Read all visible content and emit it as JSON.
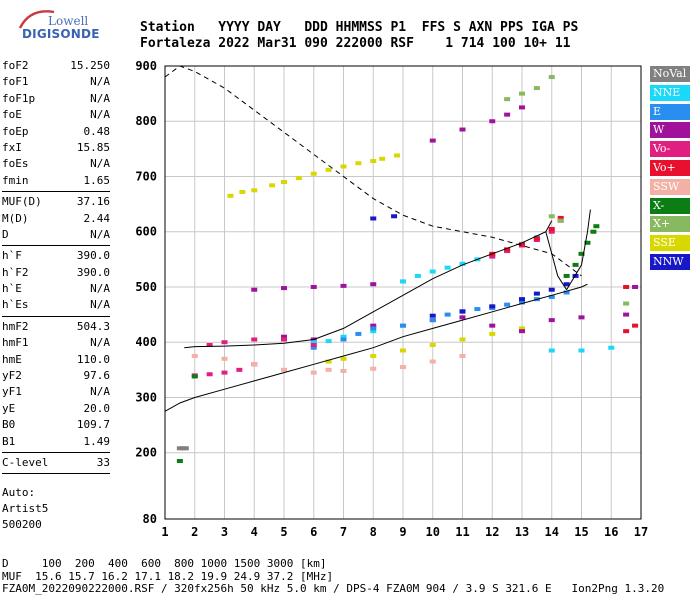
{
  "logo": {
    "line1": "Lowell",
    "line2": "DIGISONDE"
  },
  "header": {
    "line1": "Station   YYYY DAY   DDD HHMMSS P1  FFS S AXN PPS IGA PS",
    "line2": "Fortaleza 2022 Mar31 090 222000 RSF    1 714 100 10+ 11"
  },
  "params": [
    {
      "group": [
        {
          "k": "foF2",
          "v": "15.250"
        },
        {
          "k": "foF1",
          "v": "N/A"
        },
        {
          "k": "foF1p",
          "v": "N/A"
        },
        {
          "k": "foE",
          "v": "N/A"
        },
        {
          "k": "foEp",
          "v": "0.48"
        },
        {
          "k": "fxI",
          "v": "15.85"
        },
        {
          "k": "foEs",
          "v": "N/A"
        },
        {
          "k": "fmin",
          "v": "1.65"
        }
      ]
    },
    {
      "group": [
        {
          "k": "MUF(D)",
          "v": "37.16"
        },
        {
          "k": "M(D)",
          "v": "2.44"
        },
        {
          "k": "D",
          "v": "N/A"
        }
      ]
    },
    {
      "group": [
        {
          "k": "h`F",
          "v": "390.0"
        },
        {
          "k": "h`F2",
          "v": "390.0"
        },
        {
          "k": "h`E",
          "v": "N/A"
        },
        {
          "k": "h`Es",
          "v": "N/A"
        }
      ]
    },
    {
      "group": [
        {
          "k": "hmF2",
          "v": "504.3"
        },
        {
          "k": "hmF1",
          "v": "N/A"
        },
        {
          "k": "hmE",
          "v": "110.0"
        },
        {
          "k": "yF2",
          "v": "97.6"
        },
        {
          "k": "yF1",
          "v": "N/A"
        },
        {
          "k": "yE",
          "v": "20.0"
        },
        {
          "k": "B0",
          "v": "109.7"
        },
        {
          "k": "B1",
          "v": "1.49"
        }
      ]
    },
    {
      "group": [
        {
          "k": "C-level",
          "v": "33"
        }
      ]
    }
  ],
  "auto": {
    "line1": "Auto:",
    "line2": "Artist5",
    "line3": "500200"
  },
  "legend": [
    {
      "label": "NoVal",
      "color": "#808080"
    },
    {
      "label": "NNE",
      "color": "#1ad8f8"
    },
    {
      "label": "E",
      "color": "#2a8ef0"
    },
    {
      "label": "W",
      "color": "#a0129a"
    },
    {
      "label": "Vo-",
      "color": "#e02080"
    },
    {
      "label": "Vo+",
      "color": "#e8102c"
    },
    {
      "label": "SSW",
      "color": "#f4b0a4"
    },
    {
      "label": "X-",
      "color": "#0c7c14"
    },
    {
      "label": "X+",
      "color": "#88b860"
    },
    {
      "label": "SSE",
      "color": "#d8d800"
    },
    {
      "label": "NNW",
      "color": "#1818c8"
    }
  ],
  "footer": {
    "line1": "D     100  200  400  600  800 1000 1500 3000 [km]",
    "line2": "MUF  15.6 15.7 16.2 17.1 18.2 19.9 24.9 37.2 [MHz]",
    "line3": "FZA0M_2022090222000.RSF / 320fx256h 50 kHz 5.0 km / DPS-4 FZA0M 904 / 3.9 S 321.6 E   Ion2Png 1.3.20"
  },
  "chart_data": {
    "type": "scatter",
    "xlim": [
      1,
      17
    ],
    "ylim": [
      80,
      900
    ],
    "x_ticks": [
      1,
      2,
      3,
      4,
      5,
      6,
      7,
      8,
      9,
      10,
      11,
      12,
      13,
      14,
      15,
      16,
      17
    ],
    "y_ticks": [
      80,
      200,
      300,
      400,
      500,
      600,
      700,
      800,
      900
    ],
    "grid": true,
    "series": [
      {
        "name": "SSE",
        "color": "#d8d800",
        "points": [
          [
            3.2,
            665
          ],
          [
            4,
            675
          ],
          [
            5,
            690
          ],
          [
            6,
            705
          ],
          [
            7,
            718
          ],
          [
            8,
            728
          ],
          [
            8.8,
            738
          ],
          [
            3.6,
            672
          ],
          [
            4.6,
            684
          ],
          [
            5.5,
            697
          ],
          [
            6.5,
            712
          ],
          [
            7.5,
            724
          ],
          [
            8.3,
            732
          ],
          [
            7,
            370
          ],
          [
            8,
            375
          ],
          [
            9,
            385
          ],
          [
            10,
            395
          ],
          [
            11,
            405
          ],
          [
            12,
            415
          ],
          [
            13,
            425
          ],
          [
            6.5,
            365
          ]
        ]
      },
      {
        "name": "W",
        "color": "#a0129a",
        "points": [
          [
            10,
            765
          ],
          [
            11,
            785
          ],
          [
            12,
            800
          ],
          [
            12.5,
            812
          ],
          [
            13,
            825
          ],
          [
            4,
            495
          ],
          [
            5,
            498
          ],
          [
            6,
            500
          ],
          [
            7,
            502
          ],
          [
            8,
            505
          ],
          [
            9,
            510
          ],
          [
            5,
            410
          ],
          [
            6,
            405
          ],
          [
            8,
            430
          ],
          [
            10,
            440
          ],
          [
            11,
            445
          ],
          [
            12,
            430
          ],
          [
            13,
            420
          ],
          [
            14,
            440
          ],
          [
            15,
            445
          ],
          [
            16.5,
            450
          ],
          [
            16.8,
            500
          ]
        ]
      },
      {
        "name": "NNE",
        "color": "#1ad8f8",
        "points": [
          [
            9,
            510
          ],
          [
            9.5,
            520
          ],
          [
            10,
            528
          ],
          [
            10.5,
            535
          ],
          [
            11,
            542
          ],
          [
            11.5,
            550
          ],
          [
            12,
            558
          ],
          [
            12.5,
            568
          ],
          [
            13,
            578
          ],
          [
            13.5,
            590
          ],
          [
            6,
            400
          ],
          [
            6.5,
            402
          ],
          [
            7,
            410
          ],
          [
            8,
            420
          ],
          [
            9,
            430
          ],
          [
            14,
            385
          ],
          [
            15,
            385
          ],
          [
            16,
            390
          ]
        ]
      },
      {
        "name": "E",
        "color": "#2a8ef0",
        "points": [
          [
            6,
            390
          ],
          [
            7,
            405
          ],
          [
            7.5,
            415
          ],
          [
            8,
            425
          ],
          [
            9,
            430
          ],
          [
            10,
            440
          ],
          [
            10.5,
            450
          ],
          [
            11,
            455
          ],
          [
            11.5,
            460
          ],
          [
            12,
            462
          ],
          [
            12.5,
            468
          ],
          [
            13,
            472
          ],
          [
            13.5,
            478
          ],
          [
            14,
            482
          ],
          [
            14.5,
            490
          ]
        ]
      },
      {
        "name": "NNW",
        "color": "#1818c8",
        "points": [
          [
            8,
            624
          ],
          [
            8.7,
            628
          ],
          [
            10,
            448
          ],
          [
            11,
            456
          ],
          [
            12,
            465
          ],
          [
            13,
            478
          ],
          [
            13.5,
            488
          ],
          [
            14,
            495
          ],
          [
            14.5,
            505
          ],
          [
            14.8,
            520
          ]
        ]
      },
      {
        "name": "Vo-",
        "color": "#e02080",
        "points": [
          [
            2,
            340
          ],
          [
            2.5,
            342
          ],
          [
            3,
            345
          ],
          [
            3.5,
            350
          ],
          [
            4,
            360
          ],
          [
            2.5,
            395
          ],
          [
            3,
            400
          ],
          [
            4,
            405
          ],
          [
            5,
            405
          ],
          [
            6,
            395
          ],
          [
            12,
            555
          ],
          [
            12.5,
            565
          ],
          [
            13,
            575
          ],
          [
            13.5,
            585
          ],
          [
            14,
            600
          ],
          [
            14.3,
            620
          ]
        ]
      },
      {
        "name": "Vo+",
        "color": "#e8102c",
        "points": [
          [
            12,
            560
          ],
          [
            12.5,
            568
          ],
          [
            13,
            577
          ],
          [
            13.5,
            588
          ],
          [
            14,
            605
          ],
          [
            14.3,
            625
          ],
          [
            16.5,
            420
          ],
          [
            16.8,
            430
          ],
          [
            16.5,
            500
          ]
        ]
      },
      {
        "name": "SSW",
        "color": "#f4b0a4",
        "points": [
          [
            2,
            375
          ],
          [
            3,
            370
          ],
          [
            4,
            360
          ],
          [
            5,
            350
          ],
          [
            6,
            345
          ],
          [
            6.5,
            350
          ],
          [
            7,
            348
          ],
          [
            8,
            352
          ],
          [
            9,
            355
          ],
          [
            10,
            365
          ],
          [
            11,
            375
          ]
        ]
      },
      {
        "name": "X-",
        "color": "#0c7c14",
        "points": [
          [
            14.5,
            520
          ],
          [
            14.8,
            540
          ],
          [
            15,
            560
          ],
          [
            15.2,
            580
          ],
          [
            15.4,
            600
          ],
          [
            15.5,
            610
          ],
          [
            2,
            338
          ],
          [
            1.5,
            185
          ]
        ]
      },
      {
        "name": "X+",
        "color": "#88b860",
        "points": [
          [
            12.5,
            840
          ],
          [
            13,
            850
          ],
          [
            13.5,
            860
          ],
          [
            14,
            880
          ],
          [
            14.3,
            620
          ],
          [
            14,
            628
          ],
          [
            16.5,
            470
          ]
        ]
      },
      {
        "name": "NoVal",
        "color": "#808080",
        "points": [
          [
            1.5,
            208
          ],
          [
            1.6,
            208
          ],
          [
            1.7,
            208
          ]
        ]
      }
    ],
    "lines": [
      {
        "name": "dashed",
        "style": "dashed",
        "points": [
          [
            1,
            880
          ],
          [
            1.5,
            900
          ],
          [
            2,
            890
          ],
          [
            3,
            860
          ],
          [
            4,
            820
          ],
          [
            5,
            780
          ],
          [
            6,
            740
          ],
          [
            7,
            700
          ],
          [
            8,
            660
          ],
          [
            9,
            630
          ],
          [
            10,
            610
          ],
          [
            11,
            600
          ],
          [
            12,
            590
          ],
          [
            13,
            575
          ],
          [
            14,
            560
          ],
          [
            15,
            520
          ]
        ]
      },
      {
        "name": "trace1",
        "style": "solid",
        "points": [
          [
            1,
            275
          ],
          [
            1.5,
            290
          ],
          [
            2,
            300
          ],
          [
            3,
            315
          ],
          [
            4,
            330
          ],
          [
            5,
            345
          ],
          [
            6,
            360
          ],
          [
            7,
            375
          ],
          [
            8,
            390
          ],
          [
            9,
            410
          ],
          [
            10,
            425
          ],
          [
            11,
            440
          ],
          [
            12,
            455
          ],
          [
            13,
            470
          ],
          [
            14,
            485
          ],
          [
            15,
            500
          ],
          [
            15.2,
            505
          ]
        ]
      },
      {
        "name": "trace2",
        "style": "solid",
        "points": [
          [
            1.65,
            390
          ],
          [
            2,
            392
          ],
          [
            3,
            393
          ],
          [
            4,
            395
          ],
          [
            5,
            398
          ],
          [
            6,
            405
          ],
          [
            7,
            425
          ],
          [
            8,
            455
          ],
          [
            9,
            485
          ],
          [
            10,
            515
          ],
          [
            11,
            540
          ],
          [
            12,
            560
          ],
          [
            13,
            580
          ],
          [
            13.8,
            600
          ],
          [
            14,
            620
          ]
        ]
      },
      {
        "name": "trace3",
        "style": "solid",
        "points": [
          [
            13.8,
            600
          ],
          [
            14.0,
            560
          ],
          [
            14.2,
            520
          ],
          [
            14.5,
            495
          ]
        ]
      },
      {
        "name": "trace4",
        "style": "solid",
        "points": [
          [
            14.5,
            495
          ],
          [
            15.0,
            540
          ],
          [
            15.2,
            600
          ],
          [
            15.3,
            640
          ]
        ]
      }
    ]
  }
}
